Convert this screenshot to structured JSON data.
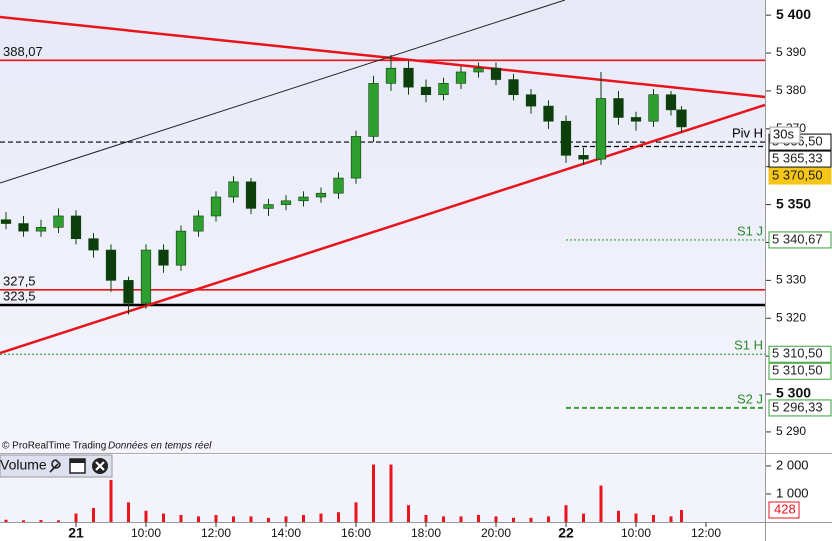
{
  "chart_data": [
    {
      "type": "candlestick",
      "timeframe": "30s",
      "footer": [
        "© ProRealTime Trading",
        "Données en temps réel"
      ],
      "x": [
        -2,
        -1.5,
        -1,
        -0.5,
        0,
        0.5,
        1,
        1.5,
        2,
        2.5,
        3,
        3.5,
        4,
        4.5,
        5,
        5.5,
        6,
        6.5,
        7,
        7.5,
        8,
        8.5,
        9,
        9.5,
        10,
        10.5,
        11,
        11.5,
        12,
        12.5,
        13,
        13.5,
        14,
        14.5,
        15,
        15.5,
        16,
        16.5,
        17,
        17.3
      ],
      "open": [
        5346,
        5345,
        5343,
        5344,
        5347,
        5341,
        5338,
        5330,
        5324,
        5338,
        5334,
        5343,
        5347,
        5352,
        5356,
        5349,
        5350,
        5351,
        5352,
        5353,
        5357,
        5368,
        5382,
        5386,
        5381,
        5379,
        5382,
        5385,
        5386,
        5383,
        5379,
        5376,
        5372,
        5363,
        5362,
        5378,
        5373,
        5372,
        5379,
        5375
      ],
      "high": [
        5348,
        5347,
        5346,
        5349,
        5348.5,
        5342.5,
        5339.5,
        5331,
        5339.5,
        5339.5,
        5344.5,
        5348.5,
        5353.5,
        5357.5,
        5357,
        5351.5,
        5352.5,
        5353.5,
        5354.5,
        5358.5,
        5369.5,
        5384,
        5389.5,
        5388,
        5383,
        5383.5,
        5386.5,
        5387.5,
        5387.5,
        5384.5,
        5380.5,
        5377.5,
        5373.5,
        5365,
        5385,
        5380,
        5374.5,
        5380.5,
        5380,
        5376
      ],
      "low": [
        5343.5,
        5341.5,
        5341.5,
        5342.5,
        5339.5,
        5336,
        5327,
        5321,
        5322.5,
        5332,
        5332.5,
        5341.5,
        5345.5,
        5350.5,
        5347.5,
        5347,
        5348.5,
        5349.5,
        5350.5,
        5351.5,
        5355.5,
        5366.5,
        5380,
        5379,
        5377,
        5377.5,
        5380.5,
        5383.5,
        5381.5,
        5377.5,
        5374,
        5370,
        5361,
        5360.5,
        5360.5,
        5371,
        5369.5,
        5370.5,
        5373.5,
        5369
      ],
      "close": [
        5345,
        5343,
        5344,
        5347,
        5341,
        5338,
        5330,
        5324,
        5338,
        5334,
        5343,
        5347,
        5352,
        5356,
        5349,
        5350,
        5351,
        5352,
        5353,
        5357,
        5368,
        5382,
        5386,
        5381,
        5379,
        5382,
        5385,
        5386,
        5383,
        5379,
        5376,
        5372,
        5363,
        5362,
        5378,
        5373,
        5372,
        5379,
        5375,
        5370.5
      ],
      "up_color": "#2e9e2e",
      "down_color": "#0d3f0d",
      "xlim": [
        -2.171,
        19.686
      ],
      "xticks": [
        {
          "value": 0,
          "label": "21"
        },
        {
          "value": 2,
          "label": "10:00"
        },
        {
          "value": 4,
          "label": "12:00"
        },
        {
          "value": 6,
          "label": "14:00"
        },
        {
          "value": 8,
          "label": "16:00"
        },
        {
          "value": 10,
          "label": "18:00"
        },
        {
          "value": 12,
          "label": "20:00"
        },
        {
          "value": 14,
          "label": "22"
        },
        {
          "value": 16,
          "label": "10:00"
        },
        {
          "value": 18,
          "label": "12:00"
        }
      ],
      "ylim": [
        5284.7,
        5404
      ],
      "yticks": [
        {
          "value": 5290,
          "label": "5 290"
        },
        {
          "value": 5300,
          "label": "5 300"
        },
        {
          "value": 5310,
          "label": "5 310"
        },
        {
          "value": 5320,
          "label": "5 320"
        },
        {
          "value": 5330,
          "label": "5 330"
        },
        {
          "value": 5340,
          "label": "5 340"
        },
        {
          "value": 5350,
          "label": "5 350"
        },
        {
          "value": 5360,
          "label": "5 360"
        },
        {
          "value": 5370,
          "label": "5 370"
        },
        {
          "value": 5380,
          "label": "5 380"
        },
        {
          "value": 5390,
          "label": "5 390"
        },
        {
          "value": 5400,
          "label": "5 400"
        }
      ],
      "trendlines": [
        {
          "x": [
            -2.171,
            19.686
          ],
          "y": [
            5399.5,
            5378.4
          ],
          "color": "#e8141c"
        },
        {
          "x": [
            -2.171,
            19.686
          ],
          "y": [
            5310.8,
            5376.3
          ],
          "color": "#e8141c"
        },
        {
          "x": [
            -2.171,
            13.971
          ],
          "y": [
            5355.7,
            5404
          ],
          "color": "#222222"
        }
      ],
      "levels": [
        {
          "value": 5388.07,
          "left_label": "388,07",
          "color": "#e8141c",
          "style": "solid"
        },
        {
          "value": 5327.5,
          "left_label": "327,5",
          "color": "#e8141c",
          "style": "solid"
        },
        {
          "value": 5323.5,
          "left_label": "323,5",
          "color": "#000000",
          "style": "solid"
        },
        {
          "value": 5366.5,
          "label": "Piv H",
          "value_label": "5 366,50",
          "color": "#000000",
          "style": "dashed"
        },
        {
          "value": 5365.33,
          "value_label": "5 365,33",
          "color": "#000000",
          "style": "dashed",
          "x_start": 14
        },
        {
          "value": 5340.67,
          "label": "S1 J",
          "value_label": "5 340,67",
          "color": "#3aa03a",
          "style": "dotted",
          "x_start": 14
        },
        {
          "value": 5310.5,
          "label": "S1 H",
          "value_label": "5 310,50",
          "color": "#3aa03a",
          "style": "dotted"
        },
        {
          "value": 5296.33,
          "label": "S2 J",
          "value_label": "5 296,33",
          "color": "#3aa03a",
          "style": "dashed",
          "x_start": 14
        }
      ],
      "markers": [
        {
          "value": 5370.5,
          "label": "5 370,50",
          "color": "#f5c518"
        },
        {
          "value": 5310.5,
          "label": "5 310,50",
          "color": "#3aa03a"
        }
      ]
    },
    {
      "type": "bar",
      "title": "Volume",
      "x": [
        -2,
        -1.5,
        -1,
        -0.5,
        0,
        0.5,
        1,
        1.5,
        2,
        2.5,
        3,
        3.5,
        4,
        4.5,
        5,
        5.5,
        6,
        6.5,
        7,
        7.5,
        8,
        8.5,
        9,
        9.5,
        10,
        10.5,
        11,
        11.5,
        12,
        12.5,
        13,
        13.5,
        14,
        14.5,
        15,
        15.5,
        16,
        16.5,
        17,
        17.3
      ],
      "values": [
        80,
        60,
        70,
        60,
        300,
        500,
        1500,
        700,
        400,
        300,
        250,
        200,
        250,
        200,
        200,
        150,
        200,
        250,
        300,
        350,
        700,
        2050,
        2050,
        600,
        250,
        200,
        200,
        250,
        200,
        150,
        150,
        200,
        600,
        300,
        1300,
        400,
        300,
        250,
        200,
        428
      ],
      "color": "#e8141c",
      "xlim": [
        -2.171,
        19.686
      ],
      "ylim": [
        0,
        2390
      ],
      "yticks": [
        {
          "value": 1000,
          "label": "1 000"
        },
        {
          "value": 2000,
          "label": "2 000"
        }
      ]
    }
  ]
}
